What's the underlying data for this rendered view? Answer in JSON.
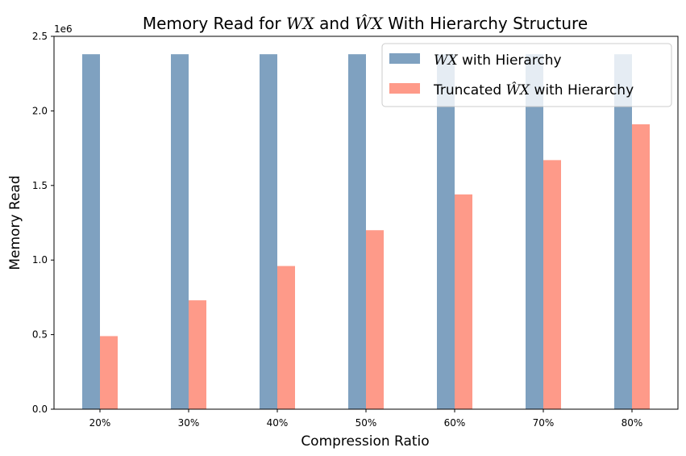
{
  "chart_data": {
    "type": "bar",
    "title_parts": {
      "prefix": "Memory Read for ",
      "wx": "WX",
      "mid": " and ",
      "wx_hat": "ŴX",
      "suffix": " With Hierarchy Structure"
    },
    "xlabel": "Compression Ratio",
    "ylabel": "Memory Read",
    "y_offset_label": "1e6",
    "categories": [
      "20%",
      "30%",
      "40%",
      "50%",
      "60%",
      "70%",
      "80%"
    ],
    "ylim": [
      0,
      2500000
    ],
    "yticks": [
      0,
      500000,
      1000000,
      1500000,
      2000000,
      2500000
    ],
    "ytick_labels": [
      "0.0",
      "0.5",
      "1.0",
      "1.5",
      "2.0",
      "2.5"
    ],
    "series": [
      {
        "legend_math": "WX",
        "legend_prefix": "",
        "legend_suffix": " with Hierarchy",
        "color": "#7fa1c0",
        "values": [
          2380000,
          2380000,
          2380000,
          2380000,
          2380000,
          2380000,
          2380000
        ]
      },
      {
        "legend_math": "ŴX",
        "legend_prefix": "Truncated ",
        "legend_suffix": " with Hierarchy",
        "color": "#fe9a89",
        "values": [
          490000,
          730000,
          960000,
          1200000,
          1440000,
          1670000,
          1910000
        ]
      }
    ],
    "legend_position": "upper right",
    "grid": false
  }
}
